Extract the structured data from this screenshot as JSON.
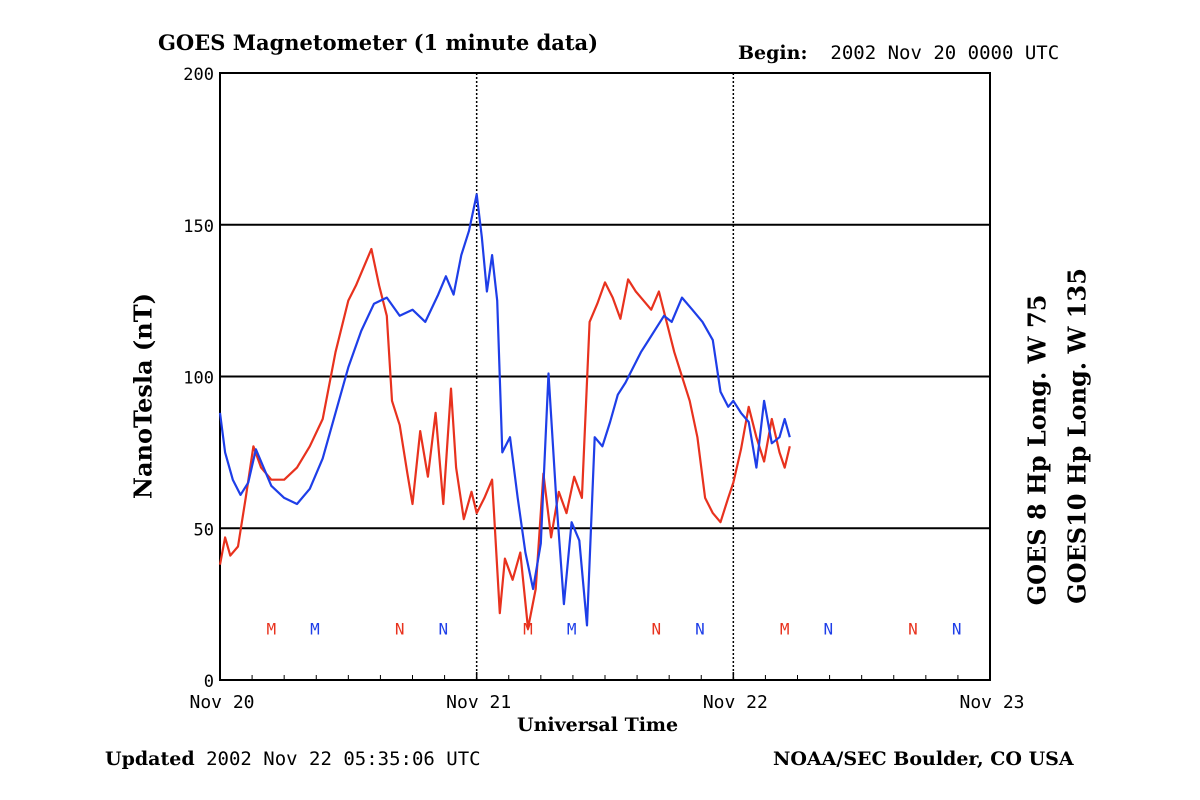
{
  "header": {
    "title": "GOES Magnetometer (1 minute data)",
    "begin_label": "Begin:",
    "begin_value": "2002 Nov 20 0000 UTC"
  },
  "footer": {
    "updated_label": "Updated",
    "updated_value": "2002 Nov 22 05:35:06 UTC",
    "credit": "NOAA/SEC Boulder, CO USA"
  },
  "colors": {
    "series1": "#e8321e",
    "series2": "#1e3ee8",
    "axes": "#000000"
  },
  "chart_data": {
    "type": "line",
    "title": "GOES Magnetometer (1 minute data)",
    "xlabel": "Universal Time",
    "ylabel": "NanoTesla (nT)",
    "xlim": [
      0,
      3
    ],
    "ylim": [
      0,
      200
    ],
    "x_ticks": [
      {
        "value": 0,
        "label": "Nov 20"
      },
      {
        "value": 1,
        "label": "Nov 21"
      },
      {
        "value": 2,
        "label": "Nov 22"
      },
      {
        "value": 3,
        "label": "Nov 23"
      }
    ],
    "y_ticks": [
      {
        "value": 0,
        "label": "0"
      },
      {
        "value": 50,
        "label": "50"
      },
      {
        "value": 100,
        "label": "100"
      },
      {
        "value": 150,
        "label": "150"
      },
      {
        "value": 200,
        "label": "200"
      }
    ],
    "grid": {
      "horizontal": [
        50,
        100,
        150
      ],
      "vertical_dotted": [
        1,
        2
      ]
    },
    "series": [
      {
        "name": "GOES 8 Hp  Long. W 75",
        "color": "#e8321e",
        "x": [
          0.0,
          0.02,
          0.04,
          0.07,
          0.1,
          0.13,
          0.16,
          0.2,
          0.25,
          0.3,
          0.35,
          0.4,
          0.45,
          0.5,
          0.53,
          0.56,
          0.59,
          0.62,
          0.65,
          0.67,
          0.7,
          0.73,
          0.75,
          0.78,
          0.81,
          0.84,
          0.87,
          0.9,
          0.92,
          0.95,
          0.98,
          1.0,
          1.03,
          1.06,
          1.09,
          1.11,
          1.14,
          1.17,
          1.2,
          1.23,
          1.26,
          1.29,
          1.32,
          1.35,
          1.38,
          1.41,
          1.44,
          1.47,
          1.5,
          1.53,
          1.56,
          1.59,
          1.62,
          1.65,
          1.68,
          1.71,
          1.74,
          1.77,
          1.8,
          1.83,
          1.86,
          1.89,
          1.92,
          1.95,
          1.98,
          2.0,
          2.03,
          2.06,
          2.09,
          2.12,
          2.15,
          2.18,
          2.2,
          2.22
        ],
        "values": [
          38,
          47,
          41,
          44,
          60,
          77,
          70,
          66,
          66,
          70,
          77,
          86,
          108,
          125,
          130,
          136,
          142,
          130,
          120,
          92,
          84,
          68,
          58,
          82,
          67,
          88,
          58,
          96,
          70,
          53,
          62,
          55,
          60,
          66,
          22,
          40,
          33,
          42,
          17,
          30,
          68,
          47,
          62,
          55,
          67,
          60,
          118,
          124,
          131,
          126,
          119,
          132,
          128,
          125,
          122,
          128,
          118,
          108,
          100,
          92,
          80,
          60,
          55,
          52,
          60,
          65,
          76,
          90,
          80,
          72,
          86,
          75,
          70,
          77
        ]
      },
      {
        "name": "GOES10 Hp  Long. W 135",
        "color": "#1e3ee8",
        "x": [
          0.0,
          0.02,
          0.05,
          0.08,
          0.11,
          0.14,
          0.17,
          0.2,
          0.25,
          0.3,
          0.35,
          0.4,
          0.45,
          0.5,
          0.55,
          0.6,
          0.65,
          0.7,
          0.75,
          0.8,
          0.85,
          0.88,
          0.91,
          0.94,
          0.97,
          1.0,
          1.02,
          1.04,
          1.06,
          1.08,
          1.1,
          1.13,
          1.16,
          1.19,
          1.22,
          1.25,
          1.28,
          1.31,
          1.34,
          1.37,
          1.4,
          1.43,
          1.46,
          1.49,
          1.52,
          1.55,
          1.58,
          1.61,
          1.64,
          1.67,
          1.7,
          1.73,
          1.76,
          1.8,
          1.84,
          1.88,
          1.92,
          1.95,
          1.98,
          2.0,
          2.03,
          2.06,
          2.09,
          2.12,
          2.15,
          2.18,
          2.2,
          2.22
        ],
        "values": [
          88,
          75,
          66,
          61,
          65,
          76,
          70,
          64,
          60,
          58,
          63,
          73,
          88,
          103,
          115,
          124,
          126,
          120,
          122,
          118,
          127,
          133,
          127,
          140,
          148,
          160,
          146,
          128,
          140,
          125,
          75,
          80,
          60,
          42,
          30,
          45,
          101,
          60,
          25,
          52,
          46,
          18,
          80,
          77,
          85,
          94,
          98,
          103,
          108,
          112,
          116,
          120,
          118,
          126,
          122,
          118,
          112,
          95,
          90,
          92,
          88,
          85,
          70,
          92,
          78,
          80,
          86,
          80
        ]
      }
    ],
    "markers": [
      {
        "x": 0.2,
        "label": "M",
        "series": "GOES 8 Hp  Long. W 75"
      },
      {
        "x": 0.37,
        "label": "M",
        "series": "GOES10 Hp  Long. W 135"
      },
      {
        "x": 0.7,
        "label": "N",
        "series": "GOES 8 Hp  Long. W 75"
      },
      {
        "x": 0.87,
        "label": "N",
        "series": "GOES10 Hp  Long. W 135"
      },
      {
        "x": 1.2,
        "label": "M",
        "series": "GOES 8 Hp  Long. W 75"
      },
      {
        "x": 1.37,
        "label": "M",
        "series": "GOES10 Hp  Long. W 135"
      },
      {
        "x": 1.7,
        "label": "N",
        "series": "GOES 8 Hp  Long. W 75"
      },
      {
        "x": 1.87,
        "label": "N",
        "series": "GOES10 Hp  Long. W 135"
      },
      {
        "x": 2.2,
        "label": "M",
        "series": "GOES 8 Hp  Long. W 75"
      },
      {
        "x": 2.37,
        "label": "N",
        "series": "GOES10 Hp  Long. W 135"
      },
      {
        "x": 2.7,
        "label": "N",
        "series": "GOES 8 Hp  Long. W 75"
      },
      {
        "x": 2.87,
        "label": "N",
        "series": "GOES10 Hp  Long. W 135"
      }
    ],
    "marker_level": 17
  }
}
